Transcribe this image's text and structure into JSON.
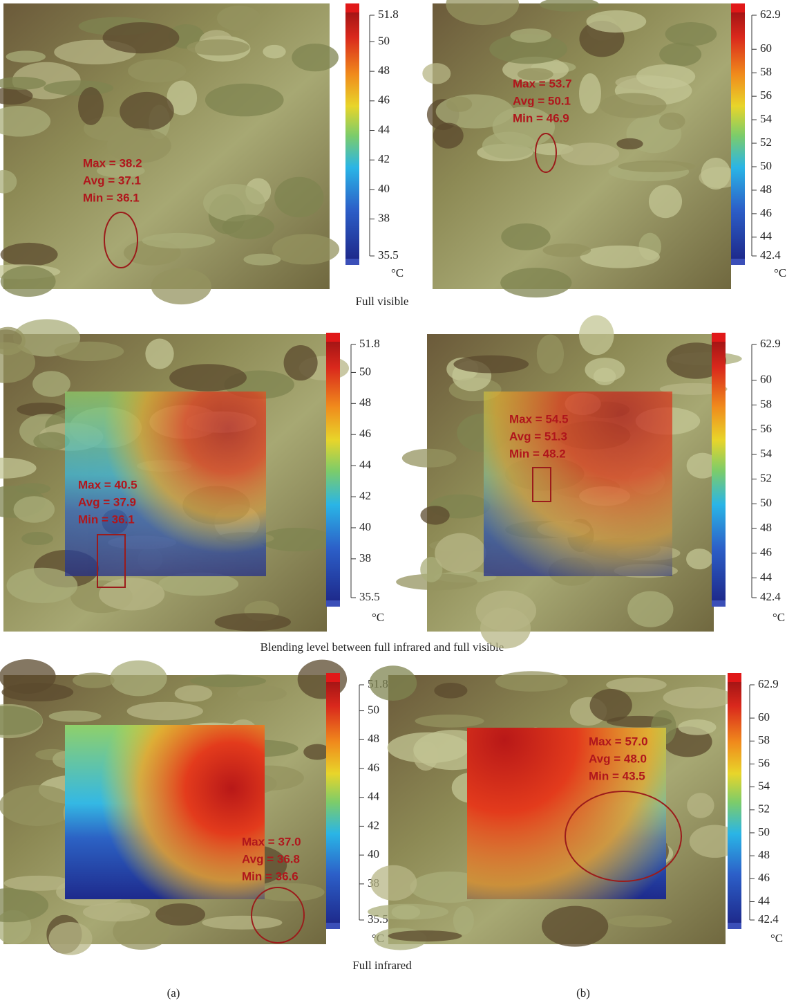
{
  "rows": [
    {
      "caption": "Full visible",
      "panels": [
        {
          "colorbar": {
            "ticks": [
              51.8,
              50,
              48,
              46,
              44,
              42,
              40,
              38,
              35.5
            ],
            "unit": "°C"
          },
          "annotation": [
            "Max = 38.2",
            "Avg = 37.1",
            "Min = 36.1"
          ]
        },
        {
          "colorbar": {
            "ticks": [
              62.9,
              60,
              58,
              56,
              54,
              52,
              50,
              48,
              46,
              44,
              42.4
            ],
            "unit": "°C"
          },
          "annotation": [
            "Max = 53.7",
            "Avg = 50.1",
            "Min = 46.9"
          ]
        }
      ]
    },
    {
      "caption": "Blending level between full infrared and full visible",
      "panels": [
        {
          "colorbar": {
            "ticks": [
              51.8,
              50,
              48,
              46,
              44,
              42,
              40,
              38,
              35.5
            ],
            "unit": "°C"
          },
          "annotation": [
            "Max = 40.5",
            "Avg = 37.9",
            "Min = 36.1"
          ]
        },
        {
          "colorbar": {
            "ticks": [
              62.9,
              60,
              58,
              56,
              54,
              52,
              50,
              48,
              46,
              44,
              42.4
            ],
            "unit": "°C"
          },
          "annotation": [
            "Max = 54.5",
            "Avg = 51.3",
            "Min = 48.2"
          ]
        }
      ]
    },
    {
      "caption": "Full infrared",
      "panels": [
        {
          "colorbar": {
            "ticks": [
              51.8,
              50,
              48,
              46,
              44,
              42,
              40,
              38,
              35.5
            ],
            "unit": "°C"
          },
          "annotation": [
            "Max = 37.0",
            "Avg = 36.8",
            "Min = 36.6"
          ]
        },
        {
          "colorbar": {
            "ticks": [
              62.9,
              60,
              58,
              56,
              54,
              52,
              50,
              48,
              46,
              44,
              42.4
            ],
            "unit": "°C"
          },
          "annotation": [
            "Max = 57.0",
            "Avg = 48.0",
            "Min = 43.5"
          ]
        }
      ]
    }
  ],
  "labels": [
    "(a)",
    "(b)"
  ]
}
